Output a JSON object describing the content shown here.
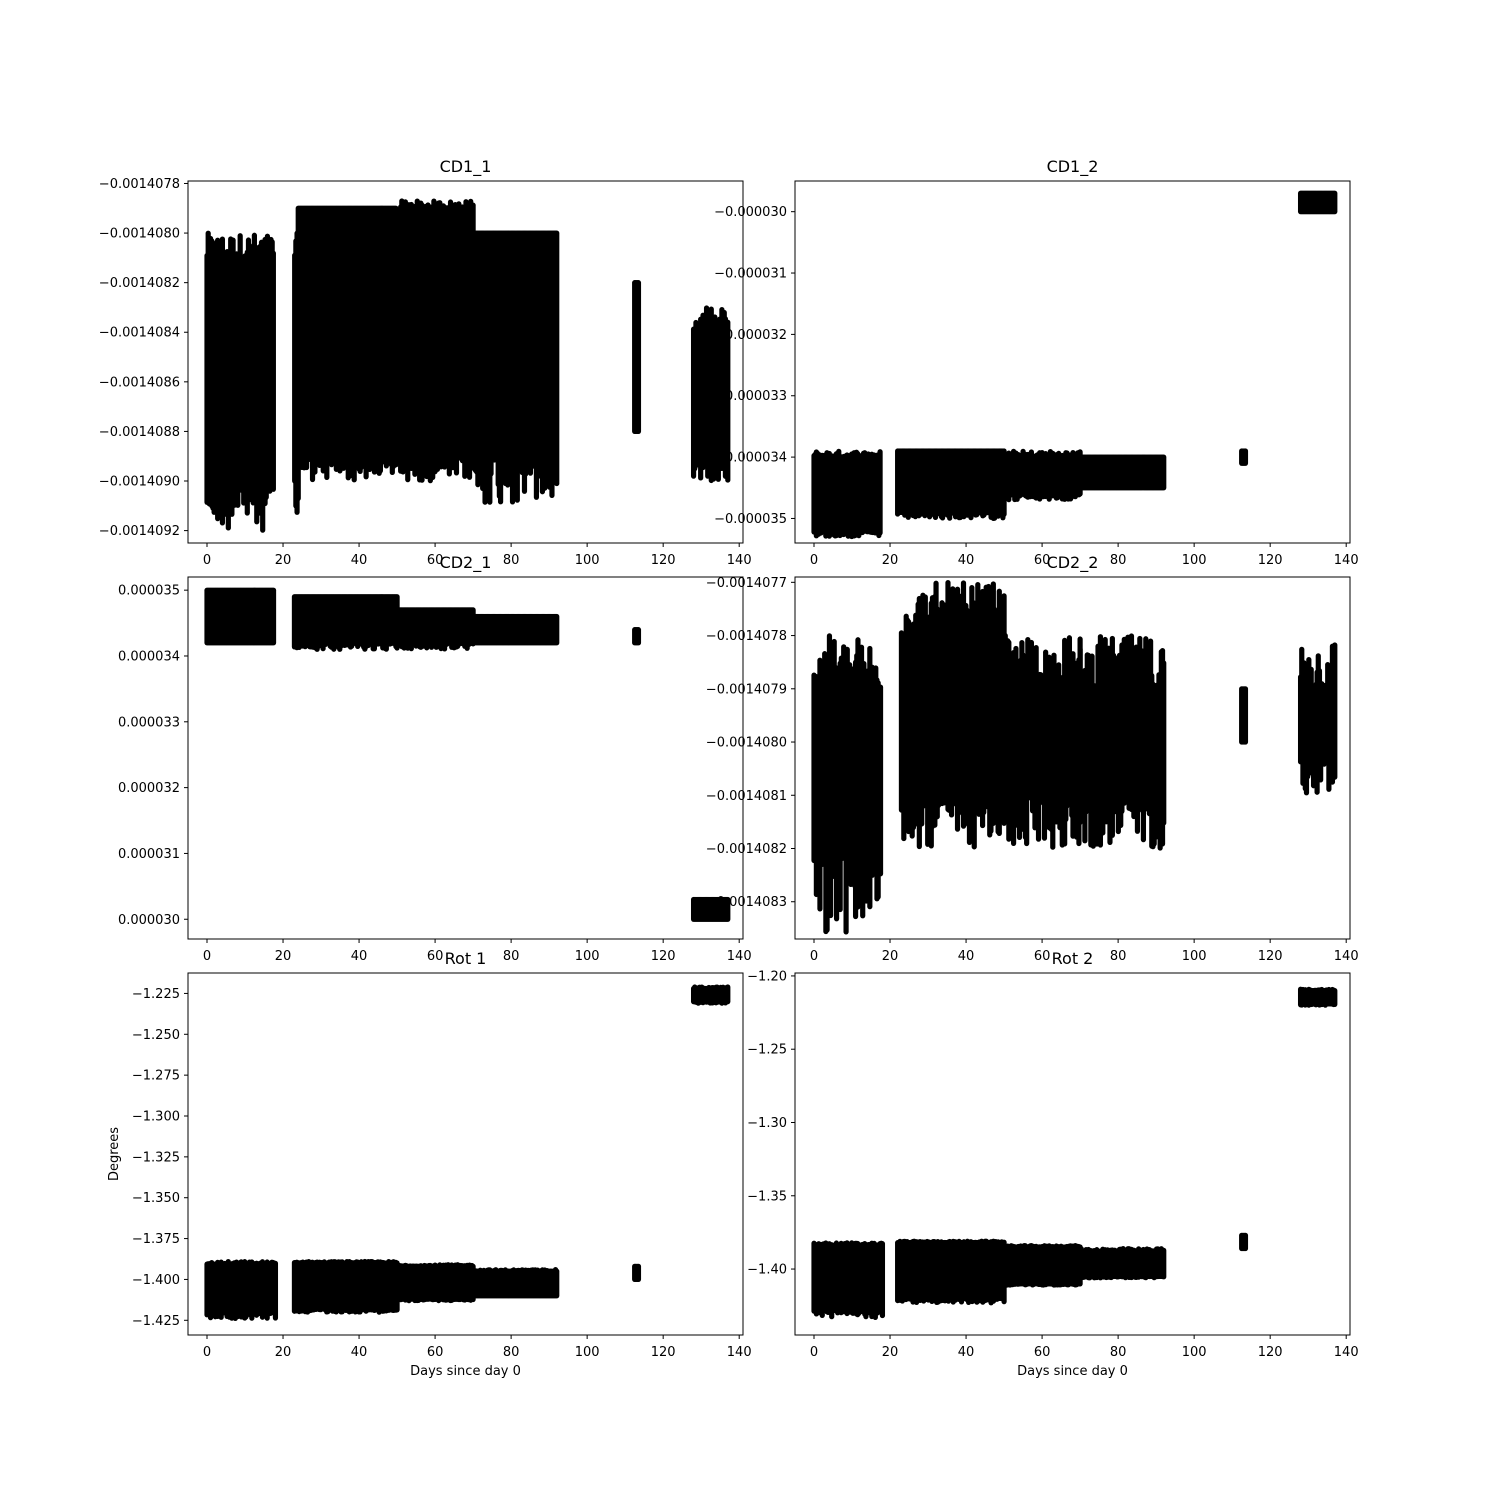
{
  "figure": {
    "background": "#ffffff",
    "marker_color": "#000000"
  },
  "chart_data": [
    {
      "type": "scatter",
      "title": "CD1_1",
      "xlabel": "",
      "ylabel": "",
      "xlim": [
        -5,
        141
      ],
      "ylim": [
        -0.00140925,
        -0.00140779
      ],
      "xticks": [
        0,
        20,
        40,
        60,
        80,
        100,
        120,
        140
      ],
      "xtick_labels": [
        "0",
        "20",
        "40",
        "60",
        "80",
        "100",
        "120",
        "140"
      ],
      "yticks": [
        -0.0014078,
        -0.001408,
        -0.0014082,
        -0.0014084,
        -0.0014086,
        -0.0014088,
        -0.001409,
        -0.0014092
      ],
      "ytick_labels": [
        "−0.0014078",
        "−0.0014080",
        "−0.0014082",
        "−0.0014084",
        "−0.0014086",
        "−0.0014088",
        "−0.0014090",
        "−0.0014092"
      ],
      "bands": [
        {
          "x": [
            0,
            24
          ],
          "y": [
            -0.001409,
            -0.0014081
          ],
          "extreme_low": -0.0014092,
          "extreme_high": -0.001408
        },
        {
          "x": [
            24,
            50
          ],
          "y": [
            -0.0014089,
            -0.0014079
          ],
          "extreme_low": -0.001409,
          "extreme_high": -0.0014079
        },
        {
          "x": [
            50,
            70
          ],
          "y": [
            -0.0014089,
            -0.0014079
          ],
          "extreme_low": -0.001409,
          "extreme_high": -0.00140787
        },
        {
          "x": [
            70,
            92
          ],
          "y": [
            -0.0014089,
            -0.001408
          ],
          "extreme_low": -0.0014091,
          "extreme_high": -0.001408
        },
        {
          "x": [
            112.5,
            113.5
          ],
          "y": [
            -0.0014088,
            -0.0014082
          ],
          "extreme_low": -0.0014088,
          "extreme_high": -0.0014082
        },
        {
          "x": [
            128,
            137
          ],
          "y": [
            -0.0014089,
            -0.0014084
          ],
          "extreme_low": -0.001409,
          "extreme_high": -0.0014083
        }
      ],
      "gaps": [
        [
          17.5,
          23
        ],
        [
          49.8,
          50.8
        ]
      ]
    },
    {
      "type": "scatter",
      "title": "CD1_2",
      "xlabel": "",
      "ylabel": "",
      "xlim": [
        -5,
        141
      ],
      "ylim": [
        -3.54e-05,
        -2.95e-05
      ],
      "xticks": [
        0,
        20,
        40,
        60,
        80,
        100,
        120,
        140
      ],
      "xtick_labels": [
        "0",
        "20",
        "40",
        "60",
        "80",
        "100",
        "120",
        "140"
      ],
      "yticks": [
        -3e-05,
        -3.1e-05,
        -3.2e-05,
        -3.3e-05,
        -3.4e-05,
        -3.5e-05
      ],
      "ytick_labels": [
        "−0.000030",
        "−0.000031",
        "−0.000032",
        "−0.000033",
        "−0.000034",
        "−0.000035"
      ],
      "bands": [
        {
          "x": [
            0,
            18
          ],
          "y": [
            -3.52e-05,
            -3.4e-05
          ],
          "extreme_low": -3.53e-05,
          "extreme_high": -3.39e-05
        },
        {
          "x": [
            22,
            50
          ],
          "y": [
            -3.49e-05,
            -3.39e-05
          ],
          "extreme_low": -3.5e-05,
          "extreme_high": -3.39e-05
        },
        {
          "x": [
            50,
            70
          ],
          "y": [
            -3.46e-05,
            -3.4e-05
          ],
          "extreme_low": -3.47e-05,
          "extreme_high": -3.39e-05
        },
        {
          "x": [
            70,
            92
          ],
          "y": [
            -3.45e-05,
            -3.4e-05
          ],
          "extreme_low": -3.45e-05,
          "extreme_high": -3.4e-05
        },
        {
          "x": [
            112.5,
            113.5
          ],
          "y": [
            -3.41e-05,
            -3.39e-05
          ],
          "extreme_low": -3.41e-05,
          "extreme_high": -3.39e-05
        },
        {
          "x": [
            128,
            137
          ],
          "y": [
            -3e-05,
            -2.97e-05
          ],
          "extreme_low": -3e-05,
          "extreme_high": -2.97e-05
        }
      ],
      "gaps": [
        [
          17.5,
          22
        ]
      ]
    },
    {
      "type": "scatter",
      "title": "CD2_1",
      "xlabel": "",
      "ylabel": "",
      "xlim": [
        -5,
        141
      ],
      "ylim": [
        2.97e-05,
        3.52e-05
      ],
      "xticks": [
        0,
        20,
        40,
        60,
        80,
        100,
        120,
        140
      ],
      "xtick_labels": [
        "0",
        "20",
        "40",
        "60",
        "80",
        "100",
        "120",
        "140"
      ],
      "yticks": [
        3.5e-05,
        3.4e-05,
        3.3e-05,
        3.2e-05,
        3.1e-05,
        3e-05
      ],
      "ytick_labels": [
        "0.000035",
        "0.000034",
        "0.000033",
        "0.000032",
        "0.000031",
        "0.000030"
      ],
      "bands": [
        {
          "x": [
            0,
            17.5
          ],
          "y": [
            3.42e-05,
            3.5e-05
          ],
          "extreme_low": 3.42e-05,
          "extreme_high": 3.5e-05
        },
        {
          "x": [
            23,
            50
          ],
          "y": [
            3.42e-05,
            3.49e-05
          ],
          "extreme_low": 3.41e-05,
          "extreme_high": 3.49e-05
        },
        {
          "x": [
            50,
            70
          ],
          "y": [
            3.42e-05,
            3.47e-05
          ],
          "extreme_low": 3.41e-05,
          "extreme_high": 3.47e-05
        },
        {
          "x": [
            70,
            92
          ],
          "y": [
            3.42e-05,
            3.46e-05
          ],
          "extreme_low": 3.42e-05,
          "extreme_high": 3.46e-05
        },
        {
          "x": [
            112.5,
            113.5
          ],
          "y": [
            3.42e-05,
            3.44e-05
          ],
          "extreme_low": 3.42e-05,
          "extreme_high": 3.44e-05
        },
        {
          "x": [
            128,
            137
          ],
          "y": [
            3e-05,
            3.03e-05
          ],
          "extreme_low": 3e-05,
          "extreme_high": 3.03e-05
        }
      ],
      "gaps": [
        [
          17.5,
          23
        ]
      ]
    },
    {
      "type": "scatter",
      "title": "CD2_2",
      "xlabel": "",
      "ylabel": "",
      "xlim": [
        -5,
        141
      ],
      "ylim": [
        -0.00140837,
        -0.00140769
      ],
      "xticks": [
        0,
        20,
        40,
        60,
        80,
        100,
        120,
        140
      ],
      "xtick_labels": [
        "0",
        "20",
        "40",
        "60",
        "80",
        "100",
        "120",
        "140"
      ],
      "yticks": [
        -0.0014077,
        -0.0014078,
        -0.0014079,
        -0.001408,
        -0.0014081,
        -0.0014082,
        -0.0014083
      ],
      "ytick_labels": [
        "−0.0014077",
        "−0.0014078",
        "−0.0014079",
        "−0.0014080",
        "−0.0014081",
        "−0.0014082",
        "−0.0014083"
      ],
      "bands": [
        {
          "x": [
            0,
            17.5
          ],
          "y": [
            -0.0014082,
            -0.0014079
          ],
          "extreme_low": -0.00140836,
          "extreme_high": -0.0014078
        },
        {
          "x": [
            23,
            50
          ],
          "y": [
            -0.0014081,
            -0.0014078
          ],
          "extreme_low": -0.0014082,
          "extreme_high": -0.0014077
        },
        {
          "x": [
            50,
            70
          ],
          "y": [
            -0.0014081,
            -0.0014079
          ],
          "extreme_low": -0.0014082,
          "extreme_high": -0.0014078
        },
        {
          "x": [
            70,
            92
          ],
          "y": [
            -0.0014081,
            -0.0014079
          ],
          "extreme_low": -0.0014082,
          "extreme_high": -0.0014078
        },
        {
          "x": [
            112.5,
            113.5
          ],
          "y": [
            -0.001408,
            -0.0014079
          ],
          "extreme_low": -0.001408,
          "extreme_high": -0.0014079
        },
        {
          "x": [
            128,
            137
          ],
          "y": [
            -0.001408,
            -0.0014079
          ],
          "extreme_low": -0.0014081,
          "extreme_high": -0.0014078
        }
      ],
      "gaps": [
        [
          17.5,
          23
        ]
      ]
    },
    {
      "type": "scatter",
      "title": "Rot 1",
      "xlabel": "Days since day 0",
      "ylabel": "Degrees",
      "xlim": [
        -5,
        141
      ],
      "ylim": [
        -1.434,
        -1.2125
      ],
      "xticks": [
        0,
        20,
        40,
        60,
        80,
        100,
        120,
        140
      ],
      "xtick_labels": [
        "0",
        "20",
        "40",
        "60",
        "80",
        "100",
        "120",
        "140"
      ],
      "yticks": [
        -1.225,
        -1.25,
        -1.275,
        -1.3,
        -1.325,
        -1.35,
        -1.375,
        -1.4,
        -1.425
      ],
      "ytick_labels": [
        "−1.225",
        "−1.250",
        "−1.275",
        "−1.300",
        "−1.325",
        "−1.350",
        "−1.375",
        "−1.400",
        "−1.425"
      ],
      "bands": [
        {
          "x": [
            0,
            18
          ],
          "y": [
            -1.42,
            -1.391
          ],
          "extreme_low": -1.424,
          "extreme_high": -1.389
        },
        {
          "x": [
            23,
            50
          ],
          "y": [
            -1.418,
            -1.39
          ],
          "extreme_low": -1.42,
          "extreme_high": -1.389
        },
        {
          "x": [
            50,
            70
          ],
          "y": [
            -1.412,
            -1.392
          ],
          "extreme_low": -1.413,
          "extreme_high": -1.391
        },
        {
          "x": [
            70,
            92
          ],
          "y": [
            -1.41,
            -1.395
          ],
          "extreme_low": -1.41,
          "extreme_high": -1.394
        },
        {
          "x": [
            112.5,
            113.5
          ],
          "y": [
            -1.4,
            -1.392
          ],
          "extreme_low": -1.4,
          "extreme_high": -1.392
        },
        {
          "x": [
            128,
            137
          ],
          "y": [
            -1.23,
            -1.222
          ],
          "extreme_low": -1.231,
          "extreme_high": -1.221
        }
      ],
      "gaps": [
        [
          18,
          23
        ]
      ]
    },
    {
      "type": "scatter",
      "title": "Rot 2",
      "xlabel": "Days since day 0",
      "ylabel": "",
      "xlim": [
        -5,
        141
      ],
      "ylim": [
        -1.445,
        -1.198
      ],
      "xticks": [
        0,
        20,
        40,
        60,
        80,
        100,
        120,
        140
      ],
      "xtick_labels": [
        "0",
        "20",
        "40",
        "60",
        "80",
        "100",
        "120",
        "140"
      ],
      "yticks": [
        -1.2,
        -1.25,
        -1.3,
        -1.35,
        -1.4
      ],
      "ytick_labels": [
        "−1.20",
        "−1.25",
        "−1.30",
        "−1.35",
        "−1.40"
      ],
      "bands": [
        {
          "x": [
            0,
            18
          ],
          "y": [
            -1.428,
            -1.384
          ],
          "extreme_low": -1.433,
          "extreme_high": -1.382
        },
        {
          "x": [
            22,
            50
          ],
          "y": [
            -1.42,
            -1.382
          ],
          "extreme_low": -1.423,
          "extreme_high": -1.381
        },
        {
          "x": [
            50,
            70
          ],
          "y": [
            -1.41,
            -1.385
          ],
          "extreme_low": -1.411,
          "extreme_high": -1.384
        },
        {
          "x": [
            70,
            92
          ],
          "y": [
            -1.405,
            -1.388
          ],
          "extreme_low": -1.406,
          "extreme_high": -1.386
        },
        {
          "x": [
            112.5,
            113.5
          ],
          "y": [
            -1.386,
            -1.377
          ],
          "extreme_low": -1.386,
          "extreme_high": -1.377
        },
        {
          "x": [
            128,
            137
          ],
          "y": [
            -1.219,
            -1.21
          ],
          "extreme_low": -1.22,
          "extreme_high": -1.209
        }
      ],
      "gaps": [
        [
          18,
          22
        ]
      ]
    }
  ]
}
